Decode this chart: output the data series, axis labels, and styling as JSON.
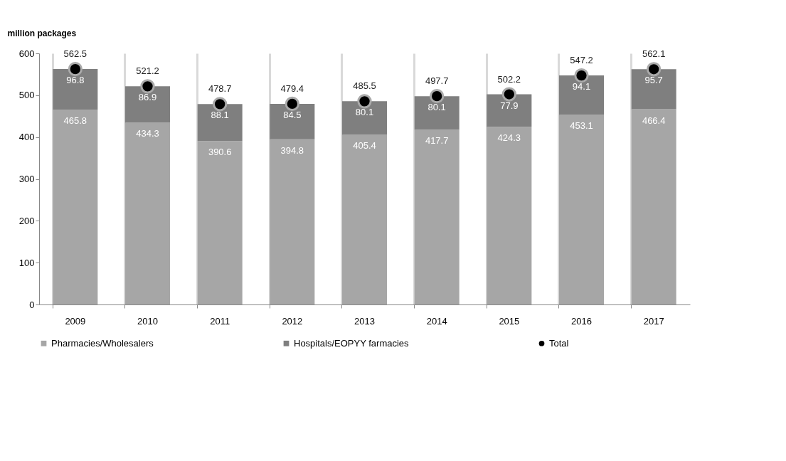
{
  "chart_data": {
    "type": "bar",
    "stacked": true,
    "ylabel": "million packages",
    "categories": [
      "2009",
      "2010",
      "2011",
      "2012",
      "2013",
      "2014",
      "2015",
      "2016",
      "2017"
    ],
    "series": [
      {
        "name": "Pharmacies/Wholesalers",
        "color": "#a6a6a6",
        "values": [
          465.8,
          434.3,
          390.6,
          394.8,
          405.4,
          417.7,
          424.3,
          453.1,
          466.4
        ]
      },
      {
        "name": "Hospitals/EOPYY farmacies",
        "color": "#7f7f7f",
        "values": [
          96.8,
          86.9,
          88.1,
          84.5,
          80.1,
          80.1,
          77.9,
          94.1,
          95.7
        ]
      },
      {
        "name": "Total",
        "type": "scatter",
        "color": "#000000",
        "marker": "circle",
        "values": [
          562.5,
          521.2,
          478.7,
          479.4,
          485.5,
          497.7,
          502.2,
          547.2,
          562.1
        ]
      }
    ],
    "ylim": [
      0,
      600
    ],
    "yticks": [
      0,
      100,
      200,
      300,
      400,
      500,
      600
    ],
    "grid": "x",
    "legend": "bottom",
    "data_labels": true
  }
}
